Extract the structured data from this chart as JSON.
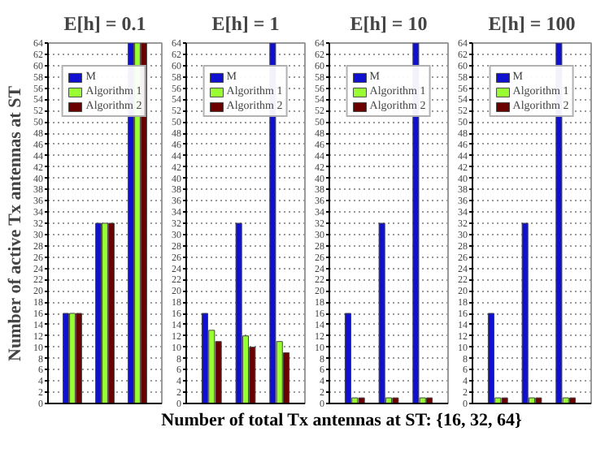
{
  "chart_data": [
    {
      "type": "bar",
      "title": "E[h] = 0.1",
      "ylabel": "Number of active Tx antennas at ST",
      "categories": [
        null,
        null,
        null
      ],
      "series": [
        {
          "name": "M",
          "color": "#1010d0",
          "values": [
            16,
            32,
            64
          ]
        },
        {
          "name": "Algorithm 1",
          "color": "#99ff33",
          "values": [
            16,
            32,
            64
          ]
        },
        {
          "name": "Algorithm 2",
          "color": "#6a0000",
          "values": [
            16,
            32,
            64
          ]
        }
      ],
      "ylim": [
        0,
        64
      ],
      "yticks": [
        0,
        2,
        4,
        6,
        8,
        10,
        12,
        14,
        16,
        18,
        20,
        22,
        24,
        26,
        28,
        30,
        32,
        34,
        36,
        38,
        40,
        42,
        44,
        46,
        48,
        50,
        52,
        54,
        56,
        58,
        60,
        62,
        64
      ],
      "grid": "y",
      "legend": "top",
      "tick_labels": "y"
    },
    {
      "type": "bar",
      "title": "E[h] = 1",
      "xlabel": "Number of total Tx antennas at ST: {16, 32, 64}",
      "categories": [
        null,
        null,
        null
      ],
      "series": [
        {
          "name": "M",
          "color": "#1010d0",
          "values": [
            16,
            32,
            64
          ]
        },
        {
          "name": "Algorithm 1",
          "color": "#99ff33",
          "values": [
            13,
            12,
            11
          ]
        },
        {
          "name": "Algorithm 2",
          "color": "#6a0000",
          "values": [
            11,
            10,
            9
          ]
        }
      ],
      "ylim": [
        0,
        64
      ],
      "yticks": [
        0,
        2,
        4,
        6,
        8,
        10,
        12,
        14,
        16,
        18,
        20,
        22,
        24,
        26,
        28,
        30,
        32,
        34,
        36,
        38,
        40,
        42,
        44,
        46,
        48,
        50,
        52,
        54,
        56,
        58,
        60,
        62,
        64
      ],
      "grid": "y",
      "legend": "top",
      "tick_labels": "y"
    },
    {
      "type": "bar",
      "title": "E[h] = 10",
      "categories": [
        null,
        null,
        null
      ],
      "series": [
        {
          "name": "M",
          "color": "#1010d0",
          "values": [
            16,
            32,
            64
          ]
        },
        {
          "name": "Algorithm 1",
          "color": "#99ff33",
          "values": [
            1,
            1,
            1
          ]
        },
        {
          "name": "Algorithm 2",
          "color": "#6a0000",
          "values": [
            1,
            1,
            1
          ]
        }
      ],
      "ylim": [
        0,
        64
      ],
      "yticks": [
        0,
        2,
        4,
        6,
        8,
        10,
        12,
        14,
        16,
        18,
        20,
        22,
        24,
        26,
        28,
        30,
        32,
        34,
        36,
        38,
        40,
        42,
        44,
        46,
        48,
        50,
        52,
        54,
        56,
        58,
        60,
        62,
        64
      ],
      "grid": "y",
      "legend": "top",
      "tick_labels": "y"
    },
    {
      "type": "bar",
      "title": "E[h] = 100",
      "categories": [
        null,
        null,
        null
      ],
      "series": [
        {
          "name": "M",
          "color": "#1010d0",
          "values": [
            16,
            32,
            64
          ]
        },
        {
          "name": "Algorithm 1",
          "color": "#99ff33",
          "values": [
            1,
            1,
            1
          ]
        },
        {
          "name": "Algorithm 2",
          "color": "#6a0000",
          "values": [
            1,
            1,
            1
          ]
        }
      ],
      "ylim": [
        0,
        64
      ],
      "yticks": [
        0,
        2,
        4,
        6,
        8,
        10,
        12,
        14,
        16,
        18,
        20,
        22,
        24,
        26,
        28,
        30,
        32,
        34,
        36,
        38,
        40,
        42,
        44,
        46,
        48,
        50,
        52,
        54,
        56,
        58,
        60,
        62,
        64
      ],
      "grid": "y",
      "legend": "top",
      "tick_labels": "y"
    }
  ]
}
